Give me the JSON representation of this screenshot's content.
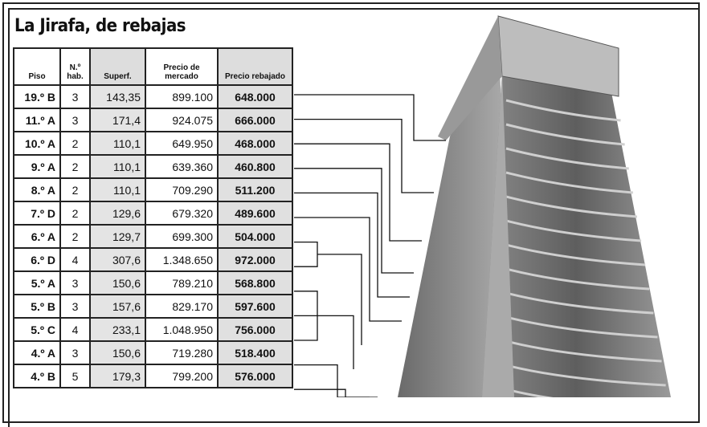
{
  "title": "La Jirafa, de rebajas",
  "table": {
    "headers": [
      "Piso",
      "N.º hab.",
      "Superf.",
      "Precio de mercado",
      "Precio rebajado"
    ],
    "rows": [
      [
        "19.º B",
        "3",
        "143,35",
        "899.100",
        "648.000"
      ],
      [
        "11.º A",
        "3",
        "171,4",
        "924.075",
        "666.000"
      ],
      [
        "10.º A",
        "2",
        "110,1",
        "649.950",
        "468.000"
      ],
      [
        "9.º A",
        "2",
        "110,1",
        "639.360",
        "460.800"
      ],
      [
        "8.º A",
        "2",
        "110,1",
        "709.290",
        "511.200"
      ],
      [
        "7.º D",
        "2",
        "129,6",
        "679.320",
        "489.600"
      ],
      [
        "6.º A",
        "2",
        "129,7",
        "699.300",
        "504.000"
      ],
      [
        "6.º D",
        "4",
        "307,6",
        "1.348.650",
        "972.000"
      ],
      [
        "5.º A",
        "3",
        "150,6",
        "789.210",
        "568.800"
      ],
      [
        "5.º B",
        "3",
        "157,6",
        "829.170",
        "597.600"
      ],
      [
        "5.º C",
        "4",
        "233,1",
        "1.048.950",
        "756.000"
      ],
      [
        "4.º A",
        "3",
        "150,6",
        "719.280",
        "518.400"
      ],
      [
        "4.º B",
        "5",
        "179,3",
        "799.200",
        "576.000"
      ]
    ]
  },
  "image": "building-photo"
}
